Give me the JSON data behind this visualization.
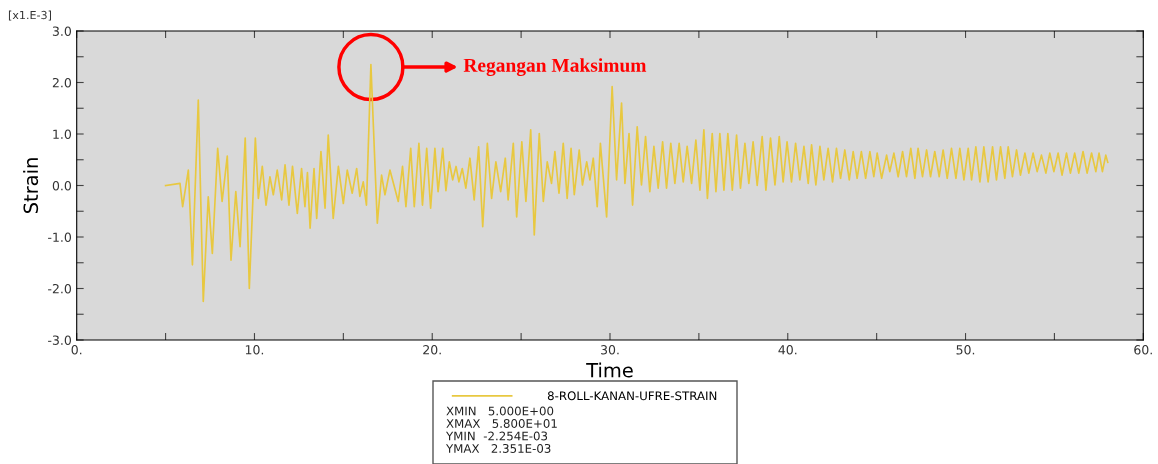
{
  "chart_data": {
    "type": "line",
    "xlabel": "Time",
    "ylabel": "Strain",
    "legend": "bottom",
    "grid": false,
    "marker": "none",
    "line_style": "solid",
    "xlim": [
      0,
      60
    ],
    "ylim": [
      -3,
      3
    ],
    "xticks": [
      {
        "value": 0,
        "label": "0."
      },
      {
        "value": 5,
        "label": null
      },
      {
        "value": 10,
        "label": "10."
      },
      {
        "value": 15,
        "label": null
      },
      {
        "value": 20,
        "label": "20."
      },
      {
        "value": 25,
        "label": null
      },
      {
        "value": 30,
        "label": "30."
      },
      {
        "value": 35,
        "label": null
      },
      {
        "value": 40,
        "label": "40."
      },
      {
        "value": 45,
        "label": null
      },
      {
        "value": 50,
        "label": "50."
      },
      {
        "value": 55,
        "label": null
      },
      {
        "value": 60,
        "label": "60."
      }
    ],
    "yticks": [
      {
        "value": -3,
        "label": "-3.0"
      },
      {
        "value": -2.5,
        "label": null
      },
      {
        "value": -2,
        "label": "-2.0"
      },
      {
        "value": -1.5,
        "label": null
      },
      {
        "value": -1,
        "label": "-1.0"
      },
      {
        "value": -0.5,
        "label": null
      },
      {
        "value": 0,
        "label": "0.0"
      },
      {
        "value": 0.5,
        "label": null
      },
      {
        "value": 1,
        "label": "1.0"
      },
      {
        "value": 1.5,
        "label": null
      },
      {
        "value": 2,
        "label": "2.0"
      },
      {
        "value": 2.5,
        "label": null
      },
      {
        "value": 3,
        "label": "3.0"
      }
    ],
    "series": [
      {
        "name": "8-ROLL-KANAN-UFRE-STRAIN",
        "color": "#e8c840",
        "x": [
          5.0,
          5.81,
          5.96,
          6.28,
          6.51,
          6.84,
          7.12,
          7.4,
          7.63,
          7.93,
          8.18,
          8.47,
          8.68,
          8.95,
          9.19,
          9.48,
          9.71,
          10.05,
          10.22,
          10.44,
          10.65,
          10.87,
          11.06,
          11.28,
          11.53,
          11.72,
          11.94,
          12.14,
          12.41,
          12.65,
          12.84,
          12.98,
          13.13,
          13.35,
          13.5,
          13.74,
          13.97,
          14.15,
          14.43,
          14.72,
          15.0,
          15.22,
          15.5,
          15.75,
          15.93,
          16.12,
          16.3,
          16.55,
          16.91,
          17.15,
          17.34,
          17.62,
          18.09,
          18.33,
          18.52,
          18.79,
          18.99,
          19.25,
          19.45,
          19.69,
          19.91,
          20.15,
          20.33,
          20.59,
          20.77,
          20.96,
          21.15,
          21.34,
          21.5,
          21.69,
          21.89,
          22.12,
          22.36,
          22.61,
          22.84,
          23.1,
          23.34,
          23.58,
          23.85,
          24.11,
          24.27,
          24.56,
          24.75,
          25.04,
          25.27,
          25.54,
          25.74,
          26.02,
          26.25,
          26.47,
          26.71,
          26.9,
          27.13,
          27.37,
          27.59,
          27.81,
          27.99,
          28.27,
          28.45,
          28.69,
          28.87,
          29.06,
          29.28,
          29.46,
          29.81,
          30.12,
          30.37,
          30.65,
          30.84,
          31.07,
          31.27,
          31.53,
          31.77,
          32.0,
          32.24,
          32.47,
          32.71,
          32.96,
          33.18,
          33.42,
          33.65,
          33.89,
          34.12,
          34.34,
          34.59,
          34.83,
          35.06,
          35.28,
          35.48,
          35.75,
          35.96,
          36.18,
          36.41,
          36.63,
          36.88,
          37.12,
          37.34,
          37.59,
          37.81,
          38.05,
          38.28,
          38.56,
          38.77,
          39.03,
          39.28,
          39.52,
          39.74,
          39.96,
          40.21,
          40.44,
          40.68,
          40.91,
          41.15,
          41.34,
          41.58,
          41.81,
          42.03,
          42.27,
          42.52,
          42.74,
          42.97,
          43.21,
          43.46,
          43.68,
          43.9,
          44.14,
          44.38,
          44.62,
          44.84,
          45.03,
          45.28,
          45.56,
          45.74,
          45.97,
          46.21,
          46.46,
          46.68,
          46.92,
          47.15,
          47.33,
          47.58,
          47.81,
          48.03,
          48.27,
          48.52,
          48.74,
          48.97,
          49.21,
          49.46,
          49.68,
          49.91,
          50.15,
          50.34,
          50.58,
          50.81,
          51.03,
          51.27,
          51.52,
          51.74,
          51.97,
          52.21,
          52.4,
          52.64,
          52.87,
          53.09,
          53.34,
          53.56,
          53.8,
          54.03,
          54.27,
          54.52,
          54.74,
          54.97,
          55.21,
          55.43,
          55.68,
          55.9,
          56.14,
          56.37,
          56.61,
          56.84,
          57.09,
          57.33,
          57.51,
          57.7,
          57.89,
          58.0
        ],
        "values": [
          0.0,
          0.04,
          -0.41,
          0.3,
          -1.54,
          1.66,
          -2.25,
          -0.22,
          -1.32,
          0.72,
          -0.31,
          0.57,
          -1.45,
          -0.12,
          -1.19,
          0.92,
          -2.0,
          0.92,
          -0.25,
          0.37,
          -0.38,
          0.17,
          -0.18,
          0.3,
          -0.28,
          0.4,
          -0.38,
          0.37,
          -0.54,
          0.33,
          -0.41,
          0.25,
          -0.83,
          0.33,
          -0.64,
          0.66,
          -0.44,
          0.98,
          -0.64,
          0.37,
          -0.35,
          0.3,
          -0.15,
          0.33,
          -0.21,
          0.07,
          -0.38,
          2.35,
          -0.73,
          0.2,
          -0.18,
          0.3,
          -0.31,
          0.37,
          -0.41,
          0.72,
          -0.41,
          0.82,
          -0.38,
          0.72,
          -0.44,
          0.72,
          -0.12,
          0.72,
          -0.1,
          0.46,
          0.11,
          0.37,
          0.07,
          0.33,
          -0.05,
          0.53,
          -0.28,
          0.75,
          -0.8,
          0.82,
          -0.25,
          0.46,
          -0.12,
          0.53,
          -0.28,
          0.82,
          -0.61,
          0.85,
          -0.31,
          1.08,
          -0.96,
          1.01,
          -0.31,
          0.46,
          0.04,
          0.66,
          -0.15,
          0.82,
          -0.25,
          0.72,
          -0.18,
          0.69,
          0.01,
          0.46,
          0.11,
          0.53,
          -0.41,
          0.82,
          -0.61,
          1.92,
          0.11,
          1.6,
          0.04,
          1.01,
          -0.38,
          1.14,
          0.01,
          0.95,
          -0.12,
          0.76,
          -0.05,
          0.85,
          -0.05,
          0.82,
          0.04,
          0.82,
          0.07,
          0.76,
          0.04,
          0.88,
          -0.09,
          1.08,
          -0.25,
          1.01,
          -0.12,
          1.01,
          -0.09,
          1.01,
          -0.09,
          0.98,
          -0.05,
          0.82,
          0.04,
          0.85,
          0.0,
          0.95,
          -0.09,
          0.92,
          0.01,
          0.95,
          0.07,
          0.85,
          0.07,
          0.82,
          0.11,
          0.76,
          0.04,
          0.79,
          0.01,
          0.76,
          0.11,
          0.72,
          0.07,
          0.72,
          0.14,
          0.69,
          0.11,
          0.66,
          0.14,
          0.66,
          0.14,
          0.66,
          0.17,
          0.63,
          0.14,
          0.59,
          0.27,
          0.63,
          0.17,
          0.66,
          0.17,
          0.72,
          0.14,
          0.72,
          0.17,
          0.69,
          0.17,
          0.66,
          0.17,
          0.69,
          0.14,
          0.72,
          0.14,
          0.72,
          0.11,
          0.72,
          0.11,
          0.75,
          0.07,
          0.75,
          0.07,
          0.75,
          0.11,
          0.75,
          0.14,
          0.75,
          0.17,
          0.69,
          0.2,
          0.63,
          0.24,
          0.63,
          0.27,
          0.59,
          0.24,
          0.63,
          0.27,
          0.63,
          0.2,
          0.63,
          0.24,
          0.63,
          0.24,
          0.66,
          0.24,
          0.63,
          0.27,
          0.63,
          0.27,
          0.59,
          0.45
        ]
      }
    ],
    "annotations": [
      "Regangan Maksimum",
      "[x1.E-3]",
      "XMIN   5.000E+00",
      "XMAX   5.800E+01",
      "YMIN  -2.254E-03",
      "YMAX   2.351E-03"
    ]
  }
}
